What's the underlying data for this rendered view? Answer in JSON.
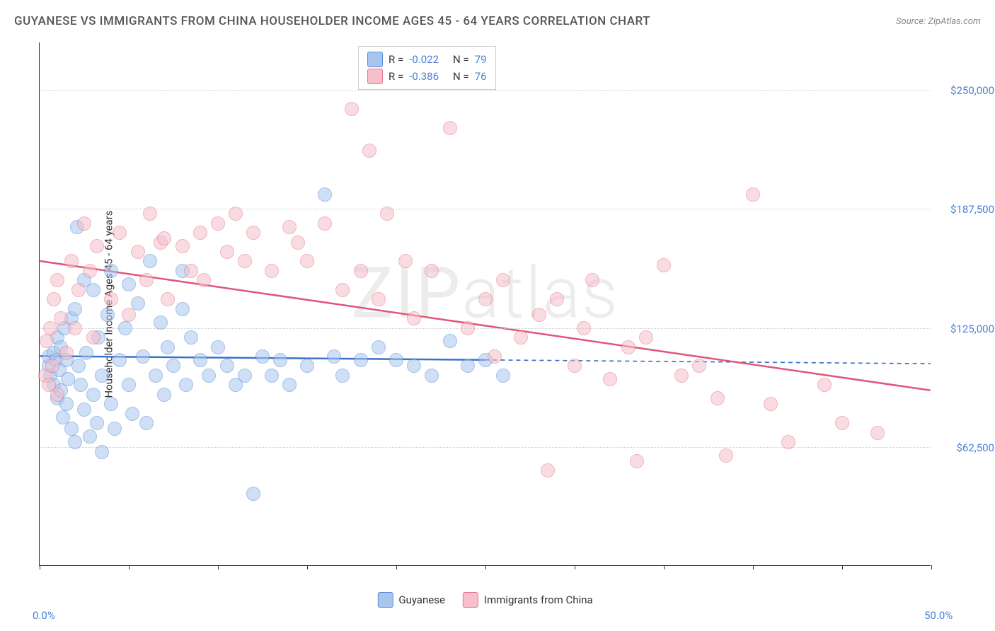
{
  "title": "GUYANESE VS IMMIGRANTS FROM CHINA HOUSEHOLDER INCOME AGES 45 - 64 YEARS CORRELATION CHART",
  "source": "Source: ZipAtlas.com",
  "watermark_a": "ZIP",
  "watermark_b": "atlas",
  "chart": {
    "type": "scatter",
    "background_color": "#ffffff",
    "y_axis_title": "Householder Income Ages 45 - 64 years",
    "xlim": [
      0,
      50
    ],
    "ylim": [
      0,
      275000
    ],
    "x_ticks": [
      0,
      5,
      10,
      15,
      20,
      25,
      30,
      35,
      40,
      45,
      50
    ],
    "x_tick_labels": {
      "0": "0.0%",
      "50": "50.0%"
    },
    "y_ticks": [
      62500,
      125000,
      187500,
      250000
    ],
    "y_tick_labels": [
      "$62,500",
      "$125,000",
      "$187,500",
      "$250,000"
    ],
    "grid_color": "#cccccc",
    "tick_label_color": "#4a7fd8",
    "point_radius": 10,
    "point_opacity": 0.55,
    "series": [
      {
        "name": "Guyanese",
        "color_fill": "#a8c6ed",
        "color_stroke": "#5a8fd6",
        "R": "-0.022",
        "N": "79",
        "trend": {
          "x1": 0,
          "y1": 110000,
          "x2": 25,
          "y2": 108000,
          "dash_x2": 50,
          "dash_y2": 106000,
          "color": "#3b73c9",
          "width": 2.5
        },
        "points": [
          [
            0.5,
            105000
          ],
          [
            0.5,
            110000
          ],
          [
            0.6,
            100000
          ],
          [
            0.8,
            112000
          ],
          [
            0.8,
            95000
          ],
          [
            0.9,
            108000
          ],
          [
            1.0,
            88000
          ],
          [
            1.0,
            120000
          ],
          [
            1.1,
            103000
          ],
          [
            1.2,
            92000
          ],
          [
            1.2,
            115000
          ],
          [
            1.3,
            78000
          ],
          [
            1.4,
            125000
          ],
          [
            1.5,
            108000
          ],
          [
            1.5,
            85000
          ],
          [
            1.6,
            98000
          ],
          [
            1.8,
            72000
          ],
          [
            1.8,
            130000
          ],
          [
            2.0,
            135000
          ],
          [
            2.0,
            65000
          ],
          [
            2.1,
            178000
          ],
          [
            2.2,
            105000
          ],
          [
            2.3,
            95000
          ],
          [
            2.5,
            150000
          ],
          [
            2.5,
            82000
          ],
          [
            2.6,
            112000
          ],
          [
            2.8,
            68000
          ],
          [
            3.0,
            145000
          ],
          [
            3.0,
            90000
          ],
          [
            3.2,
            75000
          ],
          [
            3.3,
            120000
          ],
          [
            3.5,
            100000
          ],
          [
            3.5,
            60000
          ],
          [
            3.8,
            132000
          ],
          [
            4.0,
            85000
          ],
          [
            4.0,
            155000
          ],
          [
            4.2,
            72000
          ],
          [
            4.5,
            108000
          ],
          [
            4.8,
            125000
          ],
          [
            5.0,
            95000
          ],
          [
            5.0,
            148000
          ],
          [
            5.2,
            80000
          ],
          [
            5.5,
            138000
          ],
          [
            5.8,
            110000
          ],
          [
            6.0,
            75000
          ],
          [
            6.2,
            160000
          ],
          [
            6.5,
            100000
          ],
          [
            6.8,
            128000
          ],
          [
            7.0,
            90000
          ],
          [
            7.2,
            115000
          ],
          [
            7.5,
            105000
          ],
          [
            8.0,
            135000
          ],
          [
            8.0,
            155000
          ],
          [
            8.2,
            95000
          ],
          [
            8.5,
            120000
          ],
          [
            9.0,
            108000
          ],
          [
            9.5,
            100000
          ],
          [
            10.0,
            115000
          ],
          [
            10.5,
            105000
          ],
          [
            11.0,
            95000
          ],
          [
            11.5,
            100000
          ],
          [
            12.0,
            38000
          ],
          [
            12.5,
            110000
          ],
          [
            13.0,
            100000
          ],
          [
            13.5,
            108000
          ],
          [
            14.0,
            95000
          ],
          [
            15.0,
            105000
          ],
          [
            16.0,
            195000
          ],
          [
            16.5,
            110000
          ],
          [
            17.0,
            100000
          ],
          [
            18.0,
            108000
          ],
          [
            19.0,
            115000
          ],
          [
            20.0,
            108000
          ],
          [
            21.0,
            105000
          ],
          [
            22.0,
            100000
          ],
          [
            23.0,
            118000
          ],
          [
            24.0,
            105000
          ],
          [
            25.0,
            108000
          ],
          [
            26.0,
            100000
          ]
        ]
      },
      {
        "name": "Immigrants from China",
        "color_fill": "#f5c0ca",
        "color_stroke": "#e77491",
        "R": "-0.386",
        "N": "76",
        "trend": {
          "x1": 0,
          "y1": 160000,
          "x2": 50,
          "y2": 92000,
          "dash_x2": null,
          "dash_y2": null,
          "color": "#e15579",
          "width": 2.5
        },
        "points": [
          [
            0.3,
            100000
          ],
          [
            0.4,
            118000
          ],
          [
            0.5,
            95000
          ],
          [
            0.6,
            125000
          ],
          [
            0.7,
            105000
          ],
          [
            0.8,
            140000
          ],
          [
            1.0,
            90000
          ],
          [
            1.0,
            150000
          ],
          [
            1.2,
            130000
          ],
          [
            1.5,
            112000
          ],
          [
            1.8,
            160000
          ],
          [
            2.0,
            125000
          ],
          [
            2.2,
            145000
          ],
          [
            2.5,
            180000
          ],
          [
            2.8,
            155000
          ],
          [
            3.0,
            120000
          ],
          [
            3.2,
            168000
          ],
          [
            4.0,
            140000
          ],
          [
            4.5,
            175000
          ],
          [
            5.0,
            132000
          ],
          [
            5.5,
            165000
          ],
          [
            6.0,
            150000
          ],
          [
            6.2,
            185000
          ],
          [
            6.8,
            170000
          ],
          [
            7.0,
            172000
          ],
          [
            7.2,
            140000
          ],
          [
            8.0,
            168000
          ],
          [
            8.5,
            155000
          ],
          [
            9.0,
            175000
          ],
          [
            9.2,
            150000
          ],
          [
            10.0,
            180000
          ],
          [
            10.5,
            165000
          ],
          [
            11.0,
            185000
          ],
          [
            11.5,
            160000
          ],
          [
            12.0,
            175000
          ],
          [
            13.0,
            155000
          ],
          [
            14.0,
            178000
          ],
          [
            14.5,
            170000
          ],
          [
            15.0,
            160000
          ],
          [
            16.0,
            180000
          ],
          [
            17.0,
            145000
          ],
          [
            17.5,
            240000
          ],
          [
            18.0,
            155000
          ],
          [
            18.5,
            218000
          ],
          [
            19.0,
            140000
          ],
          [
            19.5,
            185000
          ],
          [
            20.5,
            160000
          ],
          [
            21.0,
            130000
          ],
          [
            22.0,
            155000
          ],
          [
            23.0,
            230000
          ],
          [
            24.0,
            125000
          ],
          [
            25.0,
            140000
          ],
          [
            25.5,
            110000
          ],
          [
            26.0,
            150000
          ],
          [
            27.0,
            120000
          ],
          [
            28.0,
            132000
          ],
          [
            28.5,
            50000
          ],
          [
            29.0,
            140000
          ],
          [
            30.0,
            105000
          ],
          [
            30.5,
            125000
          ],
          [
            31.0,
            150000
          ],
          [
            32.0,
            98000
          ],
          [
            33.0,
            115000
          ],
          [
            33.5,
            55000
          ],
          [
            34.0,
            120000
          ],
          [
            35.0,
            158000
          ],
          [
            36.0,
            100000
          ],
          [
            37.0,
            105000
          ],
          [
            38.0,
            88000
          ],
          [
            38.5,
            58000
          ],
          [
            40.0,
            195000
          ],
          [
            41.0,
            85000
          ],
          [
            42.0,
            65000
          ],
          [
            44.0,
            95000
          ],
          [
            45.0,
            75000
          ],
          [
            47.0,
            70000
          ]
        ]
      }
    ],
    "legend_bottom": [
      {
        "label": "Guyanese",
        "fill": "#a8c6ed",
        "stroke": "#5a8fd6"
      },
      {
        "label": "Immigrants from China",
        "fill": "#f5c0ca",
        "stroke": "#e77491"
      }
    ]
  }
}
